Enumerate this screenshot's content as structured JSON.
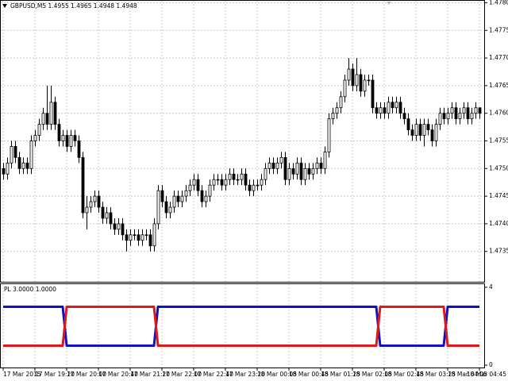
{
  "chart_data": [
    {
      "type": "candlestick",
      "title": "GBPUSD,M5  1.4955 1.4965 1.4948 1.4948",
      "categories": [
        "17 Mar 2015",
        null,
        null,
        null,
        null,
        null,
        null,
        null,
        "17 Mar 19:20",
        null,
        null,
        null,
        null,
        null,
        null,
        null,
        "17 Mar 20:00",
        null,
        null,
        null,
        null,
        null,
        null,
        null,
        "17 Mar 20:40",
        null,
        null,
        null,
        null,
        null,
        null,
        null,
        "17 Mar 21:20",
        null,
        null,
        null,
        null,
        null,
        null,
        null,
        "17 Mar 22:00",
        null,
        null,
        null,
        null,
        null,
        null,
        null,
        "17 Mar 22:40",
        null,
        null,
        null,
        null,
        null,
        null,
        null,
        "17 Mar 23:20",
        null,
        null,
        null,
        null,
        null,
        null,
        null,
        "18 Mar 00:05",
        null,
        null,
        null,
        null,
        null,
        null,
        null,
        "18 Mar 00:45",
        null,
        null,
        null,
        null,
        null,
        null,
        null,
        "18 Mar 01:25",
        null,
        null,
        null,
        null,
        null,
        null,
        null,
        "18 Mar 02:05",
        null,
        null,
        null,
        null,
        null,
        null,
        null,
        "18 Mar 02:45",
        null,
        null,
        null,
        null,
        null,
        null,
        null,
        "18 Mar 03:25",
        null,
        null,
        null,
        null,
        null,
        null,
        null,
        "18 Mar 04:05",
        null,
        null,
        null,
        null,
        null,
        null,
        null,
        "18 Mar 04:45"
      ],
      "open": [
        1.475,
        1.4749,
        1.4751,
        1.4754,
        1.4752,
        1.475,
        1.4751,
        1.475,
        1.4755,
        1.4756,
        1.4758,
        1.476,
        1.4758,
        1.4762,
        1.4758,
        1.4755,
        1.4756,
        1.4754,
        1.4756,
        1.4755,
        1.4752,
        1.4742,
        1.4743,
        1.4744,
        1.4745,
        1.4743,
        1.4741,
        1.4742,
        1.474,
        1.4739,
        1.474,
        1.4738,
        1.4737,
        1.4738,
        1.4738,
        1.4737,
        1.4738,
        1.4738,
        1.4736,
        1.474,
        1.4746,
        1.4744,
        1.4742,
        1.4743,
        1.4745,
        1.4744,
        1.4745,
        1.4746,
        1.4747,
        1.4748,
        1.4746,
        1.4744,
        1.4745,
        1.4747,
        1.4748,
        1.4748,
        1.4747,
        1.4748,
        1.4749,
        1.4748,
        1.4748,
        1.4749,
        1.4747,
        1.4746,
        1.4747,
        1.4747,
        1.4748,
        1.475,
        1.4751,
        1.475,
        1.4751,
        1.4752,
        1.4748,
        1.475,
        1.4749,
        1.4751,
        1.4748,
        1.475,
        1.4749,
        1.475,
        1.4751,
        1.475,
        1.4753,
        1.4759,
        1.476,
        1.4761,
        1.4763,
        1.4766,
        1.4768,
        1.4765,
        1.4767,
        1.4764,
        1.4766,
        1.4766,
        1.4761,
        1.476,
        1.4761,
        1.476,
        1.4762,
        1.4761,
        1.4762,
        1.476,
        1.4759,
        1.4757,
        1.4756,
        1.4758,
        1.4756,
        1.4758,
        1.4757,
        1.4755,
        1.4758,
        1.476,
        1.4759,
        1.476,
        1.4761,
        1.4759,
        1.476,
        1.4761,
        1.4759,
        1.476,
        1.4761
      ],
      "high": [
        1.4751,
        1.4752,
        1.4755,
        1.4755,
        1.4753,
        1.4752,
        1.4752,
        1.4756,
        1.4757,
        1.4759,
        1.4761,
        1.4765,
        1.4765,
        1.4763,
        1.4759,
        1.4757,
        1.4757,
        1.4757,
        1.4757,
        1.4756,
        1.4753,
        1.4745,
        1.4745,
        1.4746,
        1.4746,
        1.4744,
        1.4743,
        1.4743,
        1.4741,
        1.4741,
        1.4741,
        1.4739,
        1.4739,
        1.4739,
        1.4739,
        1.4739,
        1.4739,
        1.4739,
        1.4741,
        1.4747,
        1.4747,
        1.4745,
        1.4744,
        1.4746,
        1.4746,
        1.4746,
        1.4747,
        1.4748,
        1.4749,
        1.4749,
        1.4747,
        1.4746,
        1.4748,
        1.4749,
        1.4749,
        1.4749,
        1.4749,
        1.475,
        1.475,
        1.4749,
        1.475,
        1.475,
        1.4748,
        1.4748,
        1.4748,
        1.4749,
        1.4751,
        1.4752,
        1.4752,
        1.4752,
        1.4753,
        1.4753,
        1.4751,
        1.4751,
        1.4752,
        1.4752,
        1.4751,
        1.4751,
        1.4751,
        1.4752,
        1.4752,
        1.4754,
        1.476,
        1.4761,
        1.4762,
        1.4764,
        1.4767,
        1.477,
        1.4769,
        1.477,
        1.4768,
        1.4767,
        1.4767,
        1.4767,
        1.4762,
        1.4762,
        1.4762,
        1.4763,
        1.4763,
        1.4763,
        1.4763,
        1.4761,
        1.476,
        1.4758,
        1.4759,
        1.4759,
        1.4759,
        1.4759,
        1.4758,
        1.4759,
        1.4761,
        1.4761,
        1.4761,
        1.4762,
        1.4762,
        1.4761,
        1.4762,
        1.4762,
        1.4761,
        1.4762,
        1.4761
      ],
      "low": [
        1.4748,
        1.4748,
        1.475,
        1.4751,
        1.4749,
        1.4749,
        1.4749,
        1.4749,
        1.4754,
        1.4755,
        1.4757,
        1.4757,
        1.4757,
        1.4757,
        1.4754,
        1.4754,
        1.4753,
        1.4753,
        1.4754,
        1.4751,
        1.4741,
        1.4739,
        1.4742,
        1.4743,
        1.4742,
        1.474,
        1.474,
        1.4739,
        1.4738,
        1.4738,
        1.4737,
        1.4735,
        1.4736,
        1.4737,
        1.4736,
        1.4736,
        1.4737,
        1.4735,
        1.4735,
        1.4739,
        1.4743,
        1.4741,
        1.4741,
        1.4742,
        1.4743,
        1.4743,
        1.4744,
        1.4745,
        1.4746,
        1.4745,
        1.4743,
        1.4743,
        1.4744,
        1.4746,
        1.4747,
        1.4746,
        1.4746,
        1.4747,
        1.4747,
        1.4747,
        1.4747,
        1.4746,
        1.4745,
        1.4745,
        1.4746,
        1.4746,
        1.4747,
        1.4749,
        1.4749,
        1.4749,
        1.475,
        1.4747,
        1.4747,
        1.4748,
        1.4748,
        1.4747,
        1.4747,
        1.4748,
        1.4748,
        1.4749,
        1.4749,
        1.4749,
        1.4752,
        1.4758,
        1.4759,
        1.476,
        1.4762,
        1.4765,
        1.4764,
        1.4764,
        1.4763,
        1.4763,
        1.4765,
        1.476,
        1.4759,
        1.4759,
        1.4759,
        1.4759,
        1.476,
        1.476,
        1.4759,
        1.4758,
        1.4756,
        1.4755,
        1.4755,
        1.4755,
        1.4754,
        1.4756,
        1.4754,
        1.4754,
        1.4757,
        1.4758,
        1.4758,
        1.4759,
        1.4758,
        1.4758,
        1.4759,
        1.4758,
        1.4758,
        1.4759,
        1.4759
      ],
      "close": [
        1.4749,
        1.4751,
        1.4754,
        1.4752,
        1.475,
        1.4751,
        1.475,
        1.4755,
        1.4756,
        1.4758,
        1.476,
        1.4758,
        1.4762,
        1.4758,
        1.4755,
        1.4756,
        1.4754,
        1.4756,
        1.4755,
        1.4752,
        1.4742,
        1.4743,
        1.4744,
        1.4745,
        1.4743,
        1.4741,
        1.4742,
        1.474,
        1.4739,
        1.474,
        1.4738,
        1.4737,
        1.4738,
        1.4738,
        1.4737,
        1.4738,
        1.4738,
        1.4736,
        1.474,
        1.4746,
        1.4744,
        1.4742,
        1.4743,
        1.4745,
        1.4744,
        1.4745,
        1.4746,
        1.4747,
        1.4748,
        1.4746,
        1.4744,
        1.4745,
        1.4747,
        1.4748,
        1.4748,
        1.4747,
        1.4748,
        1.4749,
        1.4748,
        1.4748,
        1.4749,
        1.4747,
        1.4746,
        1.4747,
        1.4747,
        1.4748,
        1.475,
        1.4751,
        1.475,
        1.4751,
        1.4752,
        1.4748,
        1.475,
        1.4749,
        1.4751,
        1.4748,
        1.475,
        1.4749,
        1.475,
        1.4751,
        1.475,
        1.4753,
        1.4759,
        1.476,
        1.4761,
        1.4763,
        1.4766,
        1.4768,
        1.4765,
        1.4767,
        1.4764,
        1.4766,
        1.4766,
        1.4761,
        1.476,
        1.4761,
        1.476,
        1.4762,
        1.4761,
        1.4762,
        1.476,
        1.4759,
        1.4757,
        1.4756,
        1.4758,
        1.4756,
        1.4758,
        1.4757,
        1.4755,
        1.4758,
        1.476,
        1.4759,
        1.476,
        1.4761,
        1.4759,
        1.476,
        1.4761,
        1.4759,
        1.476,
        1.4761,
        1.476
      ],
      "up_color": "#ffffff",
      "down_color": "#000000",
      "edge_color": "#000000",
      "ylim": [
        1.47295,
        1.47805
      ],
      "yticks": [
        {
          "value": 1.4735,
          "label": "1.4735"
        },
        {
          "value": 1.474,
          "label": "1.4740"
        },
        {
          "value": 1.4745,
          "label": "1.4745"
        },
        {
          "value": 1.475,
          "label": "1.4750"
        },
        {
          "value": 1.4755,
          "label": "1.4755"
        },
        {
          "value": 1.476,
          "label": "1.4760"
        },
        {
          "value": 1.4765,
          "label": "1.4765"
        },
        {
          "value": 1.477,
          "label": "1.4770"
        },
        {
          "value": 1.4775,
          "label": "1.4775"
        },
        {
          "value": 1.478,
          "label": "1.4780"
        }
      ],
      "grid": true
    },
    {
      "type": "line",
      "title": "PL 3.0000 1.0000",
      "series": [
        {
          "color": "#1010c8",
          "values": [
            3,
            3,
            3,
            3,
            3,
            3,
            3,
            3,
            3,
            3,
            3,
            3,
            3,
            3,
            3,
            3,
            1,
            1,
            1,
            1,
            1,
            1,
            1,
            1,
            1,
            1,
            1,
            1,
            1,
            1,
            1,
            1,
            1,
            1,
            1,
            1,
            1,
            1,
            1,
            3,
            3,
            3,
            3,
            3,
            3,
            3,
            3,
            3,
            3,
            3,
            3,
            3,
            3,
            3,
            3,
            3,
            3,
            3,
            3,
            3,
            3,
            3,
            3,
            3,
            3,
            3,
            3,
            3,
            3,
            3,
            3,
            3,
            3,
            3,
            3,
            3,
            3,
            3,
            3,
            3,
            3,
            3,
            3,
            3,
            3,
            3,
            3,
            3,
            3,
            3,
            3,
            3,
            3,
            3,
            3,
            1,
            1,
            1,
            1,
            1,
            1,
            1,
            1,
            1,
            1,
            1,
            1,
            1,
            1,
            1,
            1,
            1,
            3,
            3,
            3,
            3,
            3,
            3,
            3,
            3,
            3
          ]
        },
        {
          "color": "#e01818",
          "values": [
            1,
            1,
            1,
            1,
            1,
            1,
            1,
            1,
            1,
            1,
            1,
            1,
            1,
            1,
            1,
            1,
            3,
            3,
            3,
            3,
            3,
            3,
            3,
            3,
            3,
            3,
            3,
            3,
            3,
            3,
            3,
            3,
            3,
            3,
            3,
            3,
            3,
            3,
            3,
            1,
            1,
            1,
            1,
            1,
            1,
            1,
            1,
            1,
            1,
            1,
            1,
            1,
            1,
            1,
            1,
            1,
            1,
            1,
            1,
            1,
            1,
            1,
            1,
            1,
            1,
            1,
            1,
            1,
            1,
            1,
            1,
            1,
            1,
            1,
            1,
            1,
            1,
            1,
            1,
            1,
            1,
            1,
            1,
            1,
            1,
            1,
            1,
            1,
            1,
            1,
            1,
            1,
            1,
            1,
            1,
            3,
            3,
            3,
            3,
            3,
            3,
            3,
            3,
            3,
            3,
            3,
            3,
            3,
            3,
            3,
            3,
            3,
            1,
            1,
            1,
            1,
            1,
            1,
            1,
            1,
            1
          ]
        }
      ],
      "ylim": [
        -0.12,
        4.2
      ],
      "yticks": [
        0,
        4
      ]
    }
  ]
}
